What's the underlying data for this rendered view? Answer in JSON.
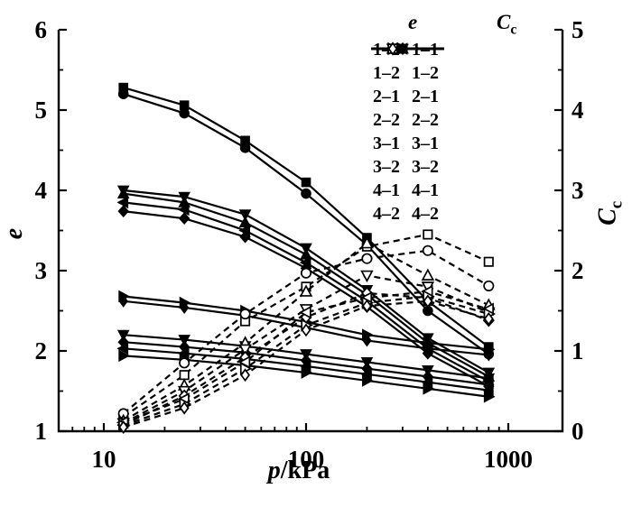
{
  "figure": {
    "background": "#ffffff",
    "foreground": "#000000",
    "description": "Compression curves: void ratio e (solid lines, filled markers) and compression index Cc (dashed lines, open markers) versus pressure p/kPa on a logarithmic axis"
  },
  "chart_data": {
    "type": "line",
    "x_pressures_kPa": [
      12.5,
      25,
      50,
      100,
      200,
      400,
      800
    ],
    "x_axis": {
      "label_italic": "p",
      "label_rest": "/kPa",
      "scale": "log",
      "tick_labels": [
        "10",
        "100",
        "1000"
      ],
      "tick_values": [
        10,
        100,
        1000
      ],
      "minor_ticks": [
        7,
        8,
        9,
        20,
        30,
        40,
        50,
        60,
        70,
        80,
        90,
        200,
        300,
        400,
        500,
        600,
        700,
        800,
        900
      ]
    },
    "y_left_axis": {
      "label": "e",
      "tick_labels": [
        "6",
        "5",
        "4",
        "3",
        "2",
        "1"
      ],
      "tick_values": [
        6,
        5,
        4,
        3,
        2,
        1
      ],
      "minor_step": 0.5,
      "range": [
        1,
        6
      ]
    },
    "y_right_axis": {
      "label": "C",
      "label_subscript": "c",
      "tick_labels": [
        "5",
        "4",
        "3",
        "2",
        "1",
        "0"
      ],
      "tick_values": [
        5,
        4,
        3,
        2,
        1,
        0
      ],
      "minor_step": 0.5,
      "range": [
        0,
        5
      ]
    },
    "legend": {
      "e_header": "e",
      "cc_header": "C",
      "cc_header_subscript": "c"
    },
    "e_series": [
      {
        "name": "1-1",
        "label": "1–1",
        "marker": "square",
        "values": [
          5.28,
          5.06,
          4.62,
          4.1,
          3.41,
          2.62,
          2.05
        ]
      },
      {
        "name": "1-2",
        "label": "1–2",
        "marker": "circle",
        "values": [
          5.2,
          4.96,
          4.53,
          3.96,
          3.32,
          2.5,
          1.96
        ]
      },
      {
        "name": "2-1",
        "label": "2–1",
        "marker": "triangle-up",
        "values": [
          3.96,
          3.85,
          3.6,
          3.2,
          2.7,
          2.1,
          1.68
        ]
      },
      {
        "name": "2-2",
        "label": "2–2",
        "marker": "triangle-down",
        "values": [
          4.0,
          3.92,
          3.7,
          3.28,
          2.76,
          2.16,
          1.73
        ]
      },
      {
        "name": "3-1",
        "label": "3–1",
        "marker": "diamond",
        "values": [
          3.74,
          3.65,
          3.42,
          3.03,
          2.55,
          1.97,
          1.56
        ]
      },
      {
        "name": "3-2",
        "label": "3–2",
        "marker": "triangle-left",
        "values": [
          3.85,
          3.76,
          3.5,
          3.1,
          2.62,
          2.03,
          1.62
        ]
      },
      {
        "name": "4-1",
        "label": "4–1",
        "marker": "triangle-right",
        "values": [
          2.68,
          2.6,
          2.5,
          2.36,
          2.2,
          2.1,
          2.02
        ]
      },
      {
        "name": "4-2",
        "label": "4–2",
        "marker": "diamond-thin",
        "values": [
          2.62,
          2.54,
          2.44,
          2.29,
          2.13,
          2.03,
          1.95
        ]
      }
    ],
    "e_series_unlabeled_overlap": [
      {
        "marker": "triangle-down",
        "values": [
          2.2,
          2.14,
          2.06,
          1.96,
          1.86,
          1.76,
          1.66
        ]
      },
      {
        "marker": "diamond",
        "values": [
          2.11,
          2.05,
          1.98,
          1.88,
          1.78,
          1.68,
          1.58
        ]
      },
      {
        "marker": "triangle-left",
        "values": [
          2.03,
          1.97,
          1.9,
          1.81,
          1.71,
          1.61,
          1.51
        ]
      },
      {
        "marker": "triangle-right",
        "values": [
          1.94,
          1.89,
          1.82,
          1.73,
          1.63,
          1.53,
          1.43
        ]
      }
    ],
    "cc_series": [
      {
        "name": "1-1",
        "label": "1–1",
        "marker": "square",
        "values": [
          0.18,
          0.7,
          1.37,
          1.8,
          2.3,
          2.45,
          2.11
        ]
      },
      {
        "name": "1-2",
        "label": "1–2",
        "marker": "circle",
        "values": [
          0.22,
          0.85,
          1.46,
          1.97,
          2.15,
          2.25,
          1.81
        ]
      },
      {
        "name": "2-1",
        "label": "2–1",
        "marker": "triangle-up",
        "values": [
          0.13,
          0.57,
          1.1,
          1.74,
          2.34,
          1.94,
          1.57
        ]
      },
      {
        "name": "2-2",
        "label": "2–2",
        "marker": "triangle-down",
        "values": [
          0.1,
          0.5,
          1.02,
          1.52,
          1.94,
          1.8,
          1.48
        ]
      },
      {
        "name": "3-1",
        "label": "3–1",
        "marker": "diamond",
        "values": [
          0.08,
          0.44,
          0.92,
          1.42,
          1.72,
          1.66,
          1.38
        ]
      },
      {
        "name": "3-2",
        "label": "3–2",
        "marker": "triangle-left",
        "values": [
          0.11,
          0.4,
          0.86,
          1.48,
          1.66,
          1.74,
          1.52
        ]
      },
      {
        "name": "4-1",
        "label": "4–1",
        "marker": "triangle-right",
        "values": [
          0.07,
          0.34,
          0.78,
          1.32,
          1.6,
          1.68,
          1.46
        ]
      },
      {
        "name": "4-2",
        "label": "4–2",
        "marker": "diamond-thin",
        "values": [
          0.05,
          0.29,
          0.7,
          1.26,
          1.56,
          1.62,
          1.4
        ]
      }
    ],
    "style": {
      "solid_line_width": 2.2,
      "dashed_pattern": "7 5",
      "filled_marker_fill": "#000000",
      "open_marker_fill": "#ffffff",
      "stroke": "#000000"
    }
  }
}
